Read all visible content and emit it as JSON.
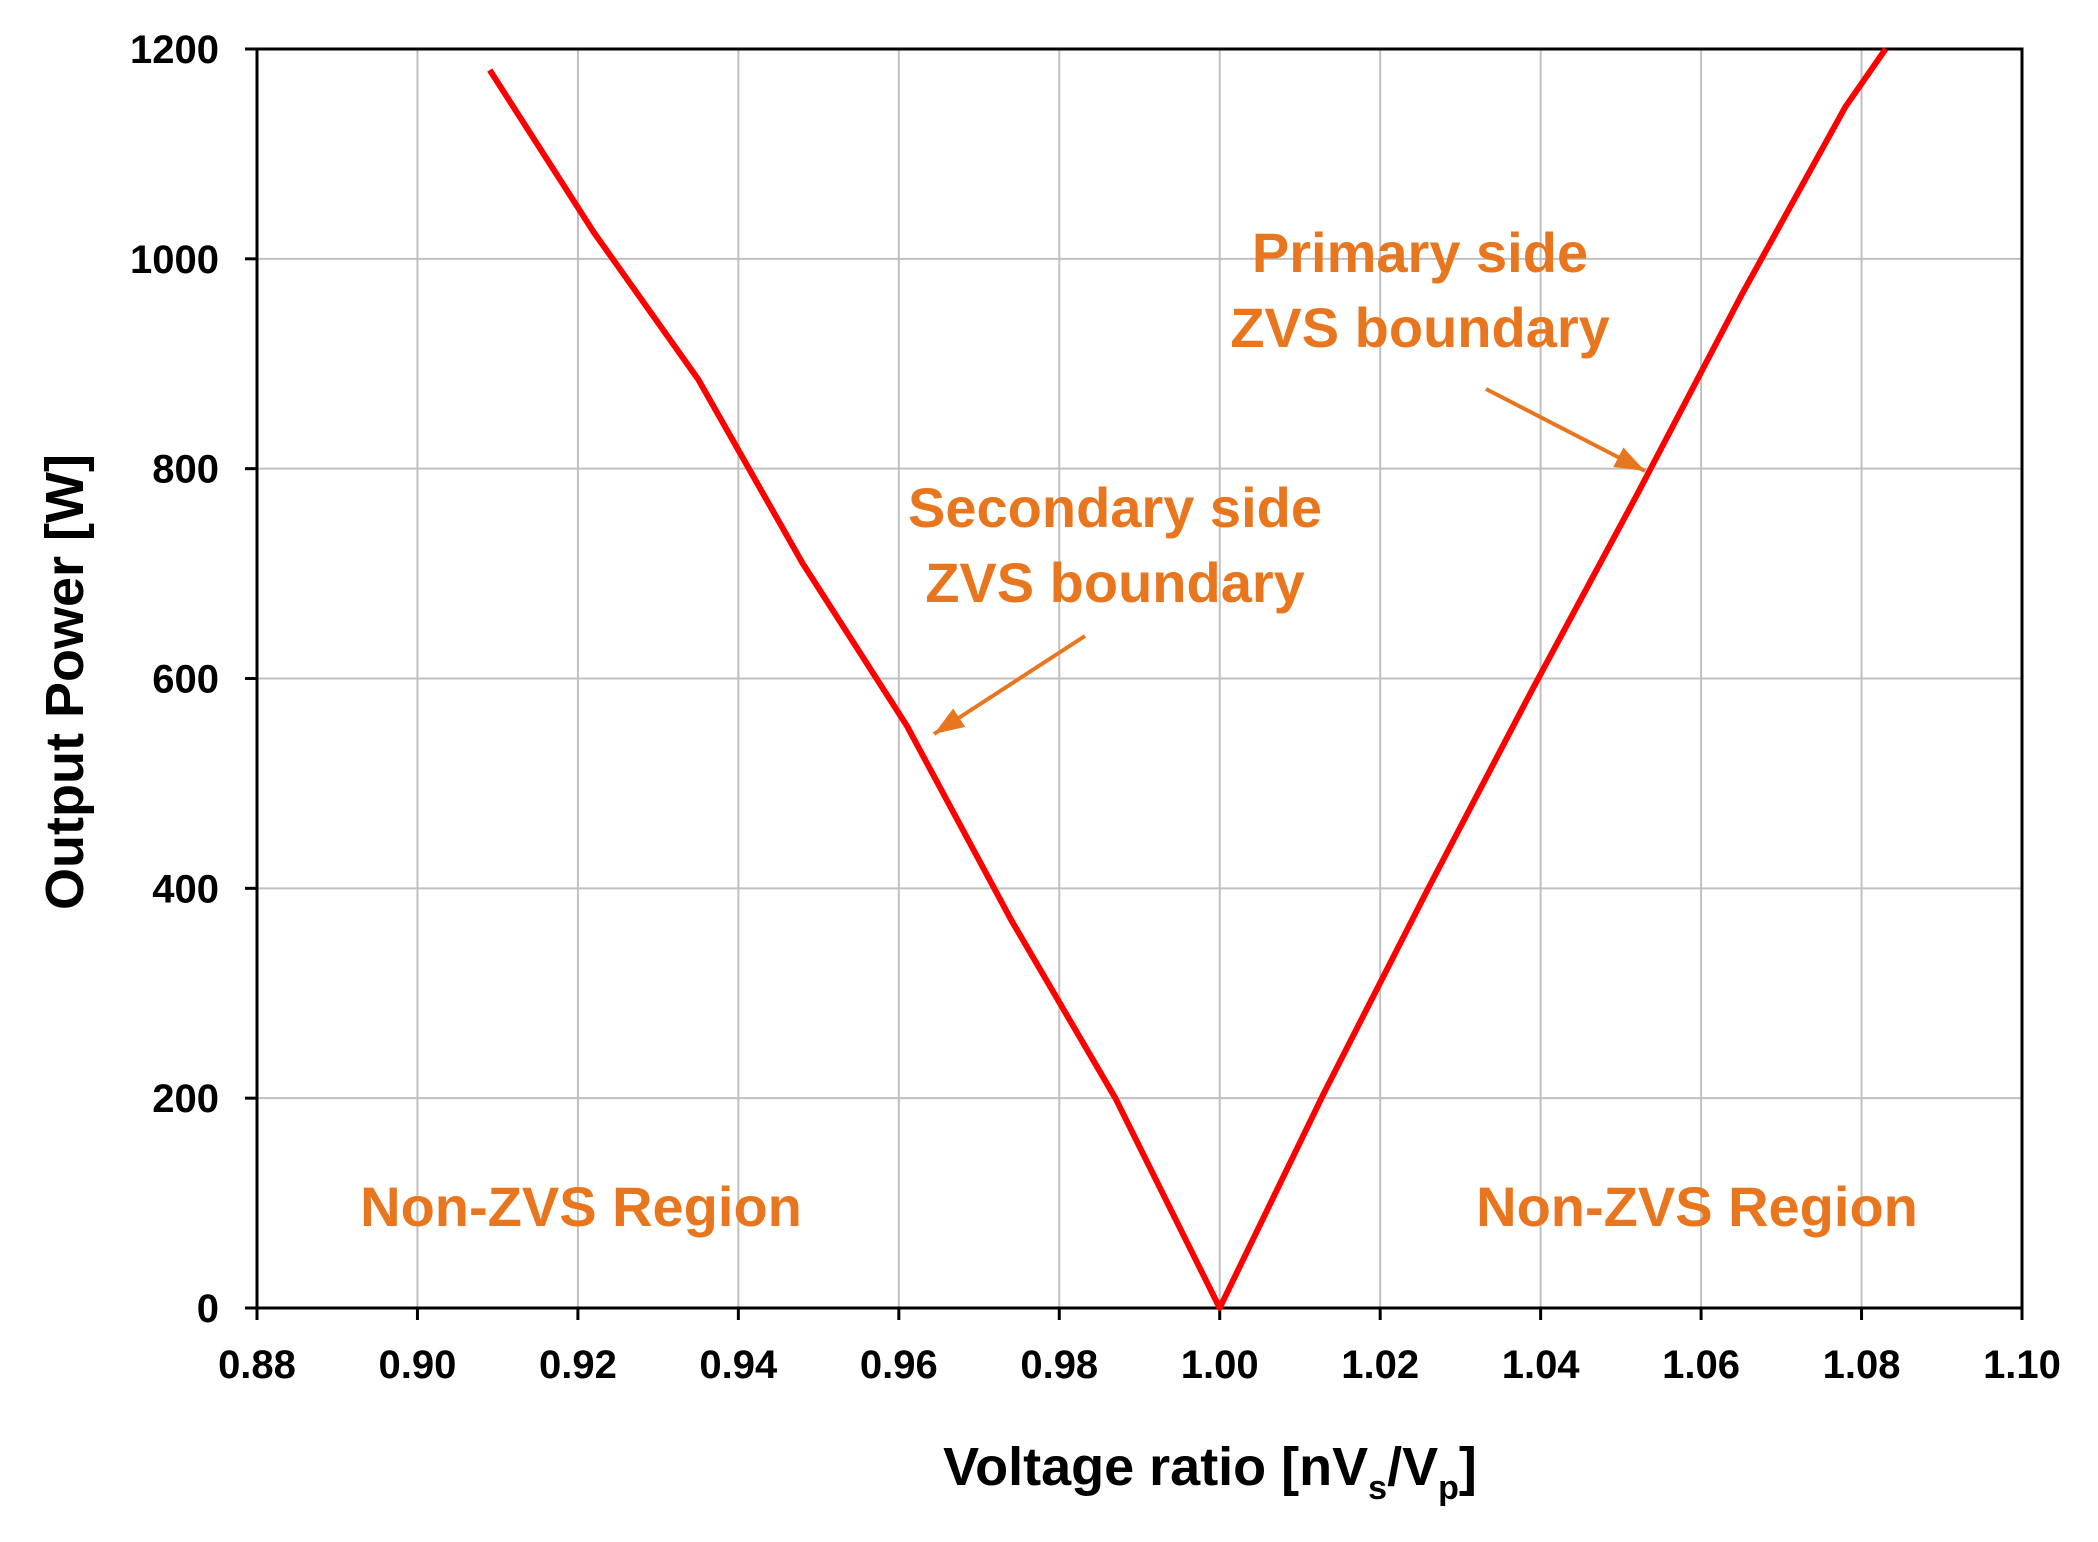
{
  "colors": {
    "line": "#ff0000",
    "annotation": "#e8761e",
    "grid": "#c0c0c0",
    "axis": "#000000"
  },
  "chart_data": {
    "type": "line",
    "xlabel": {
      "main": "Voltage ratio [nV",
      "sub1": "s",
      "mid": "/V",
      "sub2": "p",
      "end": "]"
    },
    "ylabel": "Output Power [W]",
    "xlim": [
      0.88,
      1.1
    ],
    "ylim": [
      0,
      1200
    ],
    "xticks": [
      "0.88",
      "0.90",
      "0.92",
      "0.94",
      "0.96",
      "0.98",
      "1.00",
      "1.02",
      "1.04",
      "1.06",
      "1.08",
      "1.10"
    ],
    "yticks": [
      "0",
      "200",
      "400",
      "600",
      "800",
      "1000",
      "1200"
    ],
    "grid": true,
    "series": [
      {
        "x": [
          0.909,
          0.922,
          0.935,
          0.948,
          0.961,
          0.974,
          0.987,
          1.0,
          1.013,
          1.026,
          1.039,
          1.052,
          1.065,
          1.078,
          1.083
        ],
        "y": [
          1180,
          1025,
          885,
          710,
          555,
          370,
          200,
          0,
          205,
          400,
          590,
          775,
          965,
          1145,
          1200
        ]
      }
    ],
    "annotations": {
      "secondary": [
        "Secondary side",
        "ZVS boundary"
      ],
      "primary": [
        "Primary side",
        "ZVS boundary"
      ],
      "region_left": "Non-ZVS Region",
      "region_right": "Non-ZVS Region"
    }
  }
}
